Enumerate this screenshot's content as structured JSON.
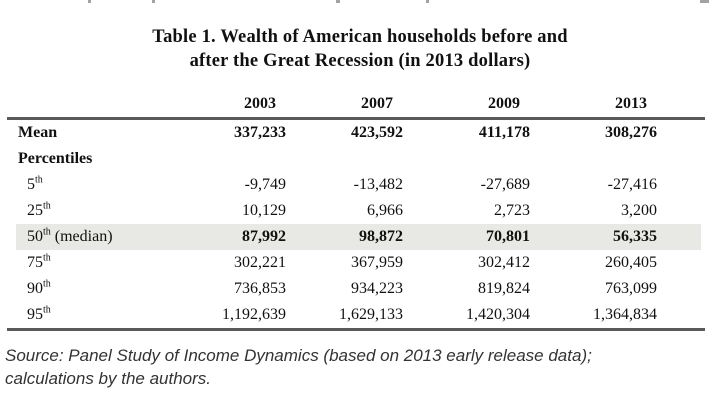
{
  "title": {
    "line1": "Table 1. Wealth of American households before and",
    "line2": "after the Great Recession (in 2013 dollars)"
  },
  "table": {
    "column_headers": [
      "2003",
      "2007",
      "2009",
      "2013"
    ],
    "rows": [
      {
        "label": "Mean",
        "sup": "",
        "suffix": "",
        "values": [
          "337,233",
          "423,592",
          "411,178",
          "308,276"
        ]
      },
      {
        "label": "Percentiles",
        "sup": "",
        "suffix": "",
        "values": [
          "",
          "",
          "",
          ""
        ]
      },
      {
        "label": "5",
        "sup": "th",
        "suffix": "",
        "values": [
          "-9,749",
          "-13,482",
          "-27,689",
          "-27,416"
        ]
      },
      {
        "label": "25",
        "sup": "th",
        "suffix": "",
        "values": [
          "10,129",
          "6,966",
          "2,723",
          "3,200"
        ]
      },
      {
        "label": "50",
        "sup": "th",
        "suffix": " (median)",
        "values": [
          "87,992",
          "98,872",
          "70,801",
          "56,335"
        ]
      },
      {
        "label": "75",
        "sup": "th",
        "suffix": "",
        "values": [
          "302,221",
          "367,959",
          "302,412",
          "260,405"
        ]
      },
      {
        "label": "90",
        "sup": "th",
        "suffix": "",
        "values": [
          "736,853",
          "934,223",
          "819,824",
          "763,099"
        ]
      },
      {
        "label": "95",
        "sup": "th",
        "suffix": "",
        "values": [
          "1,192,639",
          "1,629,133",
          "1,420,304",
          "1,364,834"
        ]
      }
    ]
  },
  "source_note": {
    "line1": "Source: Panel Study of Income Dynamics (based on 2013 early release data);",
    "line2": "calculations by the authors."
  },
  "colors": {
    "text": "#111111",
    "rule": "#595959",
    "row_highlight": "#e8e8e4",
    "source_text": "#333333"
  }
}
